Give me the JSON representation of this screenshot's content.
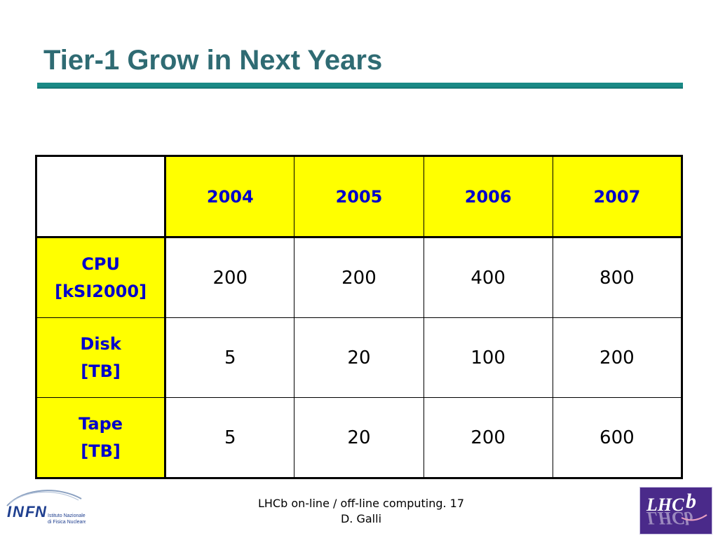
{
  "slide": {
    "title": "Tier-1 Grow in Next Years"
  },
  "table": {
    "corner": "",
    "years": [
      "2004",
      "2005",
      "2006",
      "2007"
    ],
    "rows": [
      {
        "label_line1": "CPU",
        "label_line2": "[kSI2000]",
        "values": [
          "200",
          "200",
          "400",
          "800"
        ]
      },
      {
        "label_line1": "Disk",
        "label_line2": "[TB]",
        "values": [
          "5",
          "20",
          "100",
          "200"
        ]
      },
      {
        "label_line1": "Tape",
        "label_line2": "[TB]",
        "values": [
          "5",
          "20",
          "200",
          "600"
        ]
      }
    ]
  },
  "footer": {
    "line1": "LHCb on-line / off-line computing. 17",
    "line2": "D. Galli"
  },
  "logos": {
    "infn_name": "INFN",
    "infn_sub1": "Istituto Nazionale",
    "infn_sub2": "di Fisica Nucleare",
    "lhcb_name": "LHCb"
  },
  "colors": {
    "title": "#2f6b73",
    "rule": "#1a8a86",
    "header_fill": "#ffff00",
    "header_text": "#0000cc",
    "logo_bg": "#4a2a8a"
  }
}
